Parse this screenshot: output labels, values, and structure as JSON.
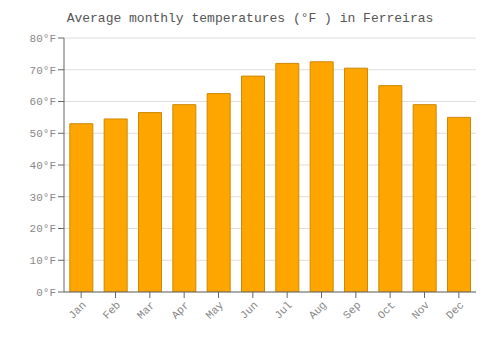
{
  "chart_data": {
    "type": "bar",
    "title": "Average monthly temperatures (°F ) in Ferreiras",
    "categories": [
      "Jan",
      "Feb",
      "Mar",
      "Apr",
      "May",
      "Jun",
      "Jul",
      "Aug",
      "Sep",
      "Oct",
      "Nov",
      "Dec"
    ],
    "values": [
      53,
      54.5,
      56.5,
      59,
      62.5,
      68,
      72,
      72.5,
      70.5,
      65,
      59,
      55
    ],
    "color": "#FFA500",
    "ylim": [
      0,
      80
    ],
    "yticks": [
      {
        "value": 0,
        "label": "0°F"
      },
      {
        "value": 10,
        "label": "10°F"
      },
      {
        "value": 20,
        "label": "20°F"
      },
      {
        "value": 30,
        "label": "30°F"
      },
      {
        "value": 40,
        "label": "40°F"
      },
      {
        "value": 50,
        "label": "50°F"
      },
      {
        "value": 60,
        "label": "60°F"
      },
      {
        "value": 70,
        "label": "70°F"
      },
      {
        "value": 80,
        "label": "80°F"
      }
    ],
    "grid": true
  }
}
